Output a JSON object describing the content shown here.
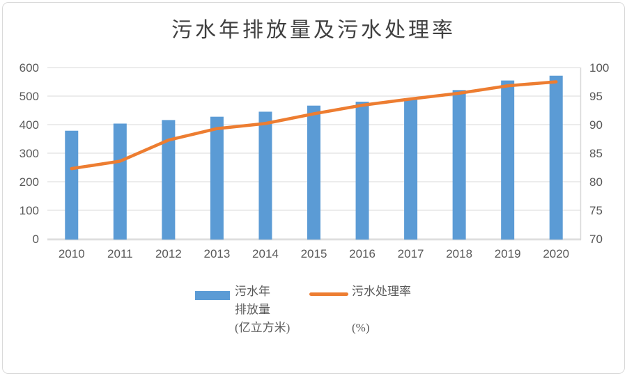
{
  "chart_data": {
    "type": "bar",
    "combo": true,
    "title": "污水年排放量及污水处理率",
    "categories": [
      "2010",
      "2011",
      "2012",
      "2013",
      "2014",
      "2015",
      "2016",
      "2017",
      "2018",
      "2019",
      "2020"
    ],
    "series": [
      {
        "name": "污水年排放量(亿立方米)",
        "type": "bar",
        "axis": "left",
        "color": "#5B9BD5",
        "values": [
          378.7,
          403.7,
          416.1,
          427.7,
          445.3,
          466.6,
          480.3,
          492.4,
          521.1,
          554.6,
          571.4
        ]
      },
      {
        "name": "污水处理率(%)",
        "type": "line",
        "axis": "right",
        "color": "#ED7D31",
        "values": [
          82.3,
          83.6,
          87.3,
          89.3,
          90.2,
          91.9,
          93.4,
          94.5,
          95.5,
          96.8,
          97.5
        ]
      }
    ],
    "left_axis": {
      "min": 0,
      "max": 600,
      "step": 100,
      "ticks": [
        "0",
        "100",
        "200",
        "300",
        "400",
        "500",
        "600"
      ]
    },
    "right_axis": {
      "min": 70,
      "max": 100,
      "step": 5,
      "ticks": [
        "70",
        "75",
        "80",
        "85",
        "90",
        "95",
        "100"
      ]
    },
    "grid": true,
    "legend_position": "bottom",
    "style": {
      "grid_color": "#d9d9d9",
      "axis_line_color": "#d9d9d9",
      "tick_color": "#595959",
      "title_color": "#404040"
    }
  },
  "legend": {
    "bar": {
      "lines": [
        "污水年",
        "排放量",
        "(亿立方米)"
      ]
    },
    "line": {
      "lines": [
        "污水处理率",
        "",
        "(%)"
      ]
    }
  }
}
